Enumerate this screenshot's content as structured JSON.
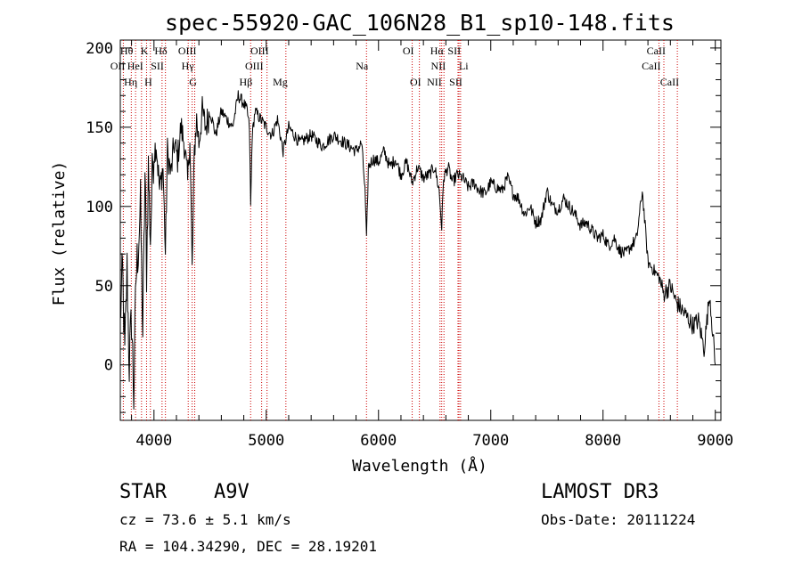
{
  "chart_data": {
    "type": "line",
    "title": "spec-55920-GAC_106N28_B1_sp10-148.fits",
    "xlabel": "Wavelength (Å)",
    "ylabel": "Flux (relative)",
    "xlim": [
      3700,
      9050
    ],
    "ylim": [
      -35,
      205
    ],
    "x_ticks": [
      4000,
      5000,
      6000,
      7000,
      8000,
      9000
    ],
    "x_tick_labels": [
      "4000",
      "5000",
      "6000",
      "7000",
      "8000",
      "9000"
    ],
    "y_ticks": [
      0,
      50,
      100,
      150,
      200
    ],
    "y_tick_labels": [
      "0",
      "50",
      "100",
      "150",
      "200"
    ],
    "grid": false,
    "series": [
      {
        "name": "flux",
        "x": [
          3700,
          3720,
          3740,
          3760,
          3780,
          3800,
          3820,
          3840,
          3860,
          3880,
          3900,
          3920,
          3934,
          3950,
          3968,
          3990,
          4020,
          4050,
          4080,
          4102,
          4120,
          4150,
          4180,
          4210,
          4240,
          4270,
          4300,
          4320,
          4340,
          4360,
          4380,
          4400,
          4430,
          4460,
          4500,
          4550,
          4600,
          4650,
          4700,
          4750,
          4800,
          4830,
          4850,
          4861,
          4875,
          4900,
          4950,
          5000,
          5050,
          5100,
          5150,
          5200,
          5250,
          5300,
          5400,
          5500,
          5600,
          5700,
          5800,
          5850,
          5880,
          5893,
          5910,
          5950,
          6000,
          6050,
          6100,
          6150,
          6200,
          6250,
          6300,
          6350,
          6400,
          6450,
          6500,
          6540,
          6563,
          6580,
          6620,
          6660,
          6700,
          6750,
          6800,
          6850,
          6900,
          6950,
          7000,
          7050,
          7100,
          7150,
          7200,
          7250,
          7300,
          7350,
          7400,
          7450,
          7500,
          7550,
          7600,
          7650,
          7700,
          7750,
          7800,
          7850,
          7900,
          7950,
          8000,
          8050,
          8100,
          8150,
          8200,
          8250,
          8300,
          8350,
          8400,
          8450,
          8500,
          8540,
          8600,
          8650,
          8700,
          8750,
          8800,
          8850,
          8900,
          8950,
          9000
        ],
        "y": [
          30,
          60,
          5,
          60,
          0,
          30,
          -20,
          55,
          75,
          100,
          20,
          120,
          60,
          125,
          80,
          130,
          140,
          110,
          125,
          70,
          135,
          120,
          140,
          130,
          150,
          140,
          115,
          145,
          60,
          135,
          155,
          140,
          160,
          150,
          160,
          145,
          160,
          155,
          150,
          170,
          165,
          160,
          150,
          100,
          145,
          160,
          155,
          150,
          145,
          155,
          135,
          150,
          145,
          140,
          145,
          138,
          145,
          140,
          135,
          140,
          110,
          78,
          125,
          130,
          128,
          135,
          125,
          130,
          120,
          128,
          115,
          125,
          118,
          120,
          125,
          110,
          87,
          118,
          125,
          115,
          120,
          118,
          112,
          115,
          110,
          108,
          115,
          112,
          110,
          118,
          108,
          105,
          95,
          100,
          90,
          92,
          110,
          100,
          98,
          105,
          100,
          95,
          88,
          90,
          85,
          80,
          82,
          75,
          80,
          72,
          70,
          75,
          80,
          110,
          65,
          60,
          55,
          45,
          50,
          40,
          35,
          30,
          25,
          28,
          10,
          45,
          0
        ]
      }
    ],
    "line_markers": [
      {
        "label": "OII",
        "x": 3727,
        "row": 1,
        "side": "left"
      },
      {
        "label": "Hθ",
        "x": 3798,
        "row": 0,
        "side": "left"
      },
      {
        "label": "Hη",
        "x": 3836,
        "row": 2,
        "side": "left"
      },
      {
        "label": "HeI",
        "x": 3889,
        "row": 1,
        "side": "left"
      },
      {
        "label": "K",
        "x": 3934,
        "row": 0,
        "side": "left"
      },
      {
        "label": "H",
        "x": 3968,
        "row": 2,
        "side": "left"
      },
      {
        "label": "SII",
        "x": 4072,
        "row": 1,
        "side": "left"
      },
      {
        "label": "Hδ",
        "x": 4102,
        "row": 0,
        "side": "left"
      },
      {
        "label": "G",
        "x": 4305,
        "row": 2,
        "side": "right"
      },
      {
        "label": "Hγ",
        "x": 4340,
        "row": 1,
        "side": "left"
      },
      {
        "label": "OIII",
        "x": 4363,
        "row": 0,
        "side": "left"
      },
      {
        "label": "Hβ",
        "x": 4861,
        "row": 2,
        "side": "left"
      },
      {
        "label": "OIII",
        "x": 4959,
        "row": 1,
        "side": "left"
      },
      {
        "label": "OIII",
        "x": 5007,
        "row": 0,
        "side": "left"
      },
      {
        "label": "Mg",
        "x": 5175,
        "row": 2,
        "side": "left"
      },
      {
        "label": "Na",
        "x": 5893,
        "row": 1,
        "side": "left"
      },
      {
        "label": "OI",
        "x": 6300,
        "row": 0,
        "side": "left"
      },
      {
        "label": "OI",
        "x": 6364,
        "row": 2,
        "side": "left"
      },
      {
        "label": "NII",
        "x": 6548,
        "row": 2,
        "side": "left"
      },
      {
        "label": "Hα",
        "x": 6563,
        "row": 0,
        "side": "left"
      },
      {
        "label": "NII",
        "x": 6583,
        "row": 1,
        "side": "left"
      },
      {
        "label": "SII",
        "x": 6717,
        "row": 0,
        "side": "left"
      },
      {
        "label": "Li",
        "x": 6708,
        "row": 1,
        "side": "right"
      },
      {
        "label": "SII",
        "x": 6731,
        "row": 2,
        "side": "left"
      },
      {
        "label": "CaII",
        "x": 8498,
        "row": 1,
        "side": "left"
      },
      {
        "label": "CaII",
        "x": 8542,
        "row": 0,
        "side": "left"
      },
      {
        "label": "CaII",
        "x": 8662,
        "row": 2,
        "side": "left"
      }
    ],
    "marker_color": "#cc0000",
    "line_color": "#000000"
  },
  "info": {
    "object_type": "STAR",
    "spectral_class": "A9V",
    "survey": "LAMOST DR3",
    "redshift": "cz =  73.6 ±  5.1 km/s",
    "obs_date": "Obs-Date: 20111224",
    "coords": "RA = 104.34290, DEC =  28.19201"
  }
}
